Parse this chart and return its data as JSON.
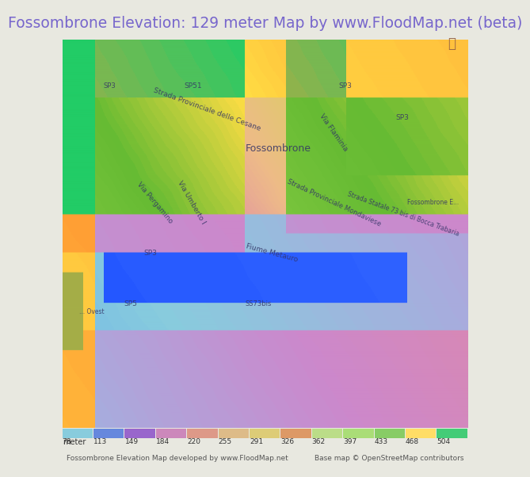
{
  "title": "Fossombrone Elevation: 129 meter Map by www.FloodMap.net (beta)",
  "title_color": "#7766cc",
  "title_bg": "#e8e8e0",
  "title_fontsize": 13.5,
  "colorbar_labels": [
    "78",
    "113",
    "149",
    "184",
    "220",
    "255",
    "291",
    "326",
    "362",
    "397",
    "433",
    "468",
    "504"
  ],
  "colorbar_colors": [
    "#00cc44",
    "#aaddaa",
    "#88ccdd",
    "#6688dd",
    "#9966cc",
    "#cc88bb",
    "#dd9988",
    "#ddaa77",
    "#ddcc66",
    "#dddd88",
    "#dd9966",
    "#ffcc44",
    "#44cc88"
  ],
  "legend_label": "meter",
  "footer_left": "Fossombrone Elevation Map developed by www.FloodMap.net",
  "footer_right": "Base map © OpenStreetMap contributors",
  "map_bg": "#c8b8e8",
  "fig_width": 5.12,
  "fig_height": 5.82,
  "elevation_min": 78,
  "elevation_max": 504
}
